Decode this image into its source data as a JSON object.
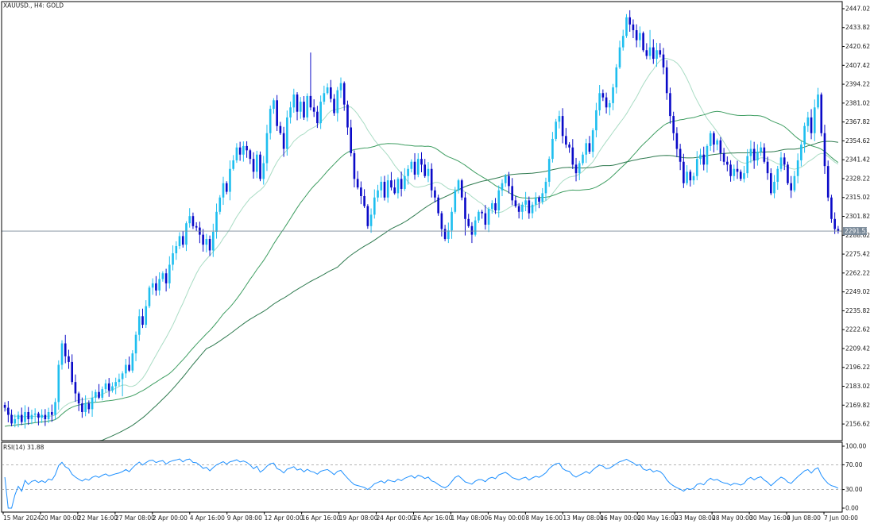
{
  "header": {
    "symbol": "XAUUSD.",
    "timeframe": "H4",
    "description": "GOLD"
  },
  "rsi_panel": {
    "label": "RSI(14)",
    "value": "31.88"
  },
  "current_price": "2291.53",
  "colors": {
    "bull": "#1ebeef",
    "bear": "#0a0ac8",
    "ma_fast": "#a9dcc4",
    "ma_mid": "#3f9e62",
    "ma_slow": "#2e7a4f",
    "rsi": "#1e90ff",
    "frame": "#000000",
    "price_line": "#7a8a99",
    "price_tag_bg": "#7a8a99"
  },
  "chart_data": [
    {
      "type": "candlestick",
      "title": "XAUUSD., H4: GOLD",
      "ylim": [
        2145.0,
        2452.0
      ],
      "y_ticks": [
        "2447.02",
        "2433.82",
        "2420.62",
        "2407.42",
        "2394.22",
        "2381.02",
        "2367.82",
        "2354.62",
        "2341.42",
        "2328.22",
        "2315.02",
        "2301.82",
        "2288.62",
        "2275.42",
        "2262.22",
        "2249.02",
        "2235.82",
        "2222.62",
        "2209.42",
        "2196.22",
        "2183.02",
        "2169.82",
        "2156.62"
      ],
      "x_ticks": [
        "15 Mar 2024",
        "20 Mar 00:00",
        "22 Mar 16:00",
        "27 Mar 08:00",
        "2 Apr 00:00",
        "4 Apr 16:00",
        "9 Apr 08:00",
        "12 Apr 00:00",
        "16 Apr 16:00",
        "19 Apr 08:00",
        "24 Apr 00:00",
        "26 Apr 16:00",
        "1 May 08:00",
        "6 May 00:00",
        "8 May 16:00",
        "13 May 08:00",
        "16 May 00:00",
        "20 May 16:00",
        "23 May 08:00",
        "28 May 00:00",
        "30 May 16:00",
        "4 Jun 08:00",
        "7 Jun 00:00"
      ],
      "last_price": 2291.53,
      "close": [
        2168,
        2163,
        2157,
        2160,
        2163,
        2158,
        2165,
        2160,
        2163,
        2164,
        2161,
        2163,
        2160,
        2165,
        2163,
        2172,
        2198,
        2213,
        2204,
        2200,
        2186,
        2178,
        2171,
        2165,
        2171,
        2167,
        2175,
        2179,
        2175,
        2181,
        2185,
        2180,
        2183,
        2186,
        2188,
        2192,
        2198,
        2194,
        2206,
        2219,
        2232,
        2226,
        2239,
        2252,
        2255,
        2250,
        2258,
        2262,
        2255,
        2268,
        2276,
        2281,
        2288,
        2282,
        2297,
        2302,
        2295,
        2294,
        2289,
        2282,
        2286,
        2278,
        2291,
        2305,
        2315,
        2325,
        2319,
        2335,
        2341,
        2350,
        2345,
        2351,
        2348,
        2342,
        2333,
        2345,
        2328,
        2339,
        2360,
        2377,
        2383,
        2365,
        2360,
        2349,
        2371,
        2378,
        2387,
        2375,
        2382,
        2371,
        2386,
        2378,
        2375,
        2367,
        2382,
        2388,
        2392,
        2384,
        2374,
        2390,
        2395,
        2380,
        2364,
        2346,
        2328,
        2322,
        2316,
        2309,
        2295,
        2303,
        2315,
        2320,
        2326,
        2315,
        2327,
        2322,
        2318,
        2328,
        2321,
        2330,
        2335,
        2340,
        2331,
        2342,
        2338,
        2330,
        2335,
        2320,
        2315,
        2304,
        2293,
        2286,
        2292,
        2305,
        2320,
        2327,
        2315,
        2300,
        2295,
        2289,
        2299,
        2305,
        2304,
        2296,
        2307,
        2311,
        2306,
        2320,
        2325,
        2330,
        2323,
        2313,
        2309,
        2305,
        2310,
        2313,
        2304,
        2310,
        2315,
        2312,
        2318,
        2326,
        2342,
        2356,
        2368,
        2372,
        2358,
        2352,
        2350,
        2338,
        2332,
        2339,
        2345,
        2353,
        2347,
        2362,
        2376,
        2388,
        2385,
        2378,
        2381,
        2392,
        2406,
        2420,
        2428,
        2441,
        2436,
        2432,
        2425,
        2430,
        2418,
        2414,
        2420,
        2412,
        2418,
        2415,
        2406,
        2388,
        2372,
        2360,
        2349,
        2340,
        2325,
        2333,
        2327,
        2330,
        2342,
        2345,
        2338,
        2351,
        2360,
        2352,
        2355,
        2346,
        2340,
        2338,
        2330,
        2335,
        2333,
        2328,
        2332,
        2344,
        2349,
        2341,
        2347,
        2350,
        2340,
        2332,
        2318,
        2326,
        2335,
        2343,
        2338,
        2325,
        2320,
        2330,
        2341,
        2352,
        2365,
        2371,
        2360,
        2378,
        2387,
        2360,
        2337,
        2315,
        2300,
        2293,
        2291.53
      ],
      "rsi": {
        "ylim": [
          0,
          100
        ],
        "levels": [
          70,
          30
        ],
        "ticks": [
          "100.00",
          "70.00",
          "30.00",
          "0.00"
        ],
        "last": 31.88
      },
      "moving_averages": [
        "fast",
        "mid",
        "slow"
      ]
    }
  ]
}
